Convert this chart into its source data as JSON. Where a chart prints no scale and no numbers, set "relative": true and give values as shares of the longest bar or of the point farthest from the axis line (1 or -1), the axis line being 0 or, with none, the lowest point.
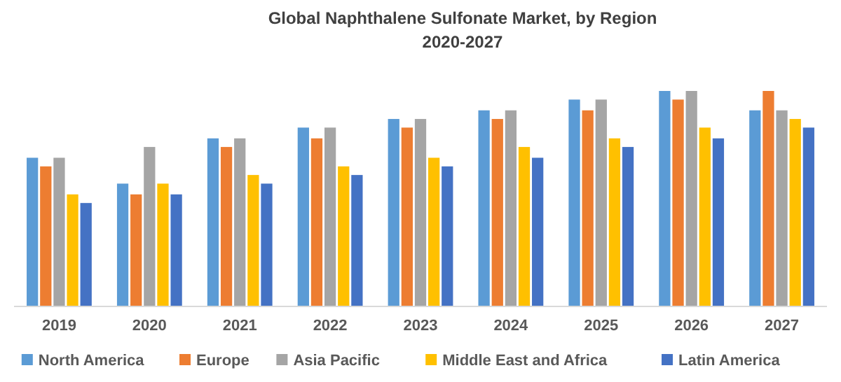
{
  "chart_data": {
    "type": "bar",
    "title": "Global Naphthalene Sulfonate Market, by Region\n2020-2027",
    "relative": true,
    "legend": "bottom",
    "categories": [
      "2019",
      "2020",
      "2021",
      "2022",
      "2023",
      "2024",
      "2025",
      "2026",
      "2027"
    ],
    "series": [
      {
        "name": "North America",
        "color": "#5b9bd5",
        "values": [
          0.69,
          0.57,
          0.78,
          0.83,
          0.87,
          0.91,
          0.96,
          1,
          0.91
        ]
      },
      {
        "name": "Europe",
        "color": "#ed7d31",
        "values": [
          0.65,
          0.52,
          0.74,
          0.78,
          0.83,
          0.87,
          0.91,
          0.96,
          1
        ]
      },
      {
        "name": "Asia Pacific",
        "color": "#a5a5a5",
        "values": [
          0.69,
          0.74,
          0.78,
          0.83,
          0.87,
          0.91,
          0.96,
          1,
          0.91
        ]
      },
      {
        "name": "Middle East and Africa",
        "color": "#ffc000",
        "values": [
          0.52,
          0.57,
          0.61,
          0.65,
          0.69,
          0.74,
          0.78,
          0.83,
          0.87
        ]
      },
      {
        "name": "Latin America",
        "color": "#4472c4",
        "values": [
          0.48,
          0.52,
          0.57,
          0.61,
          0.65,
          0.69,
          0.74,
          0.78,
          0.83
        ]
      }
    ]
  }
}
